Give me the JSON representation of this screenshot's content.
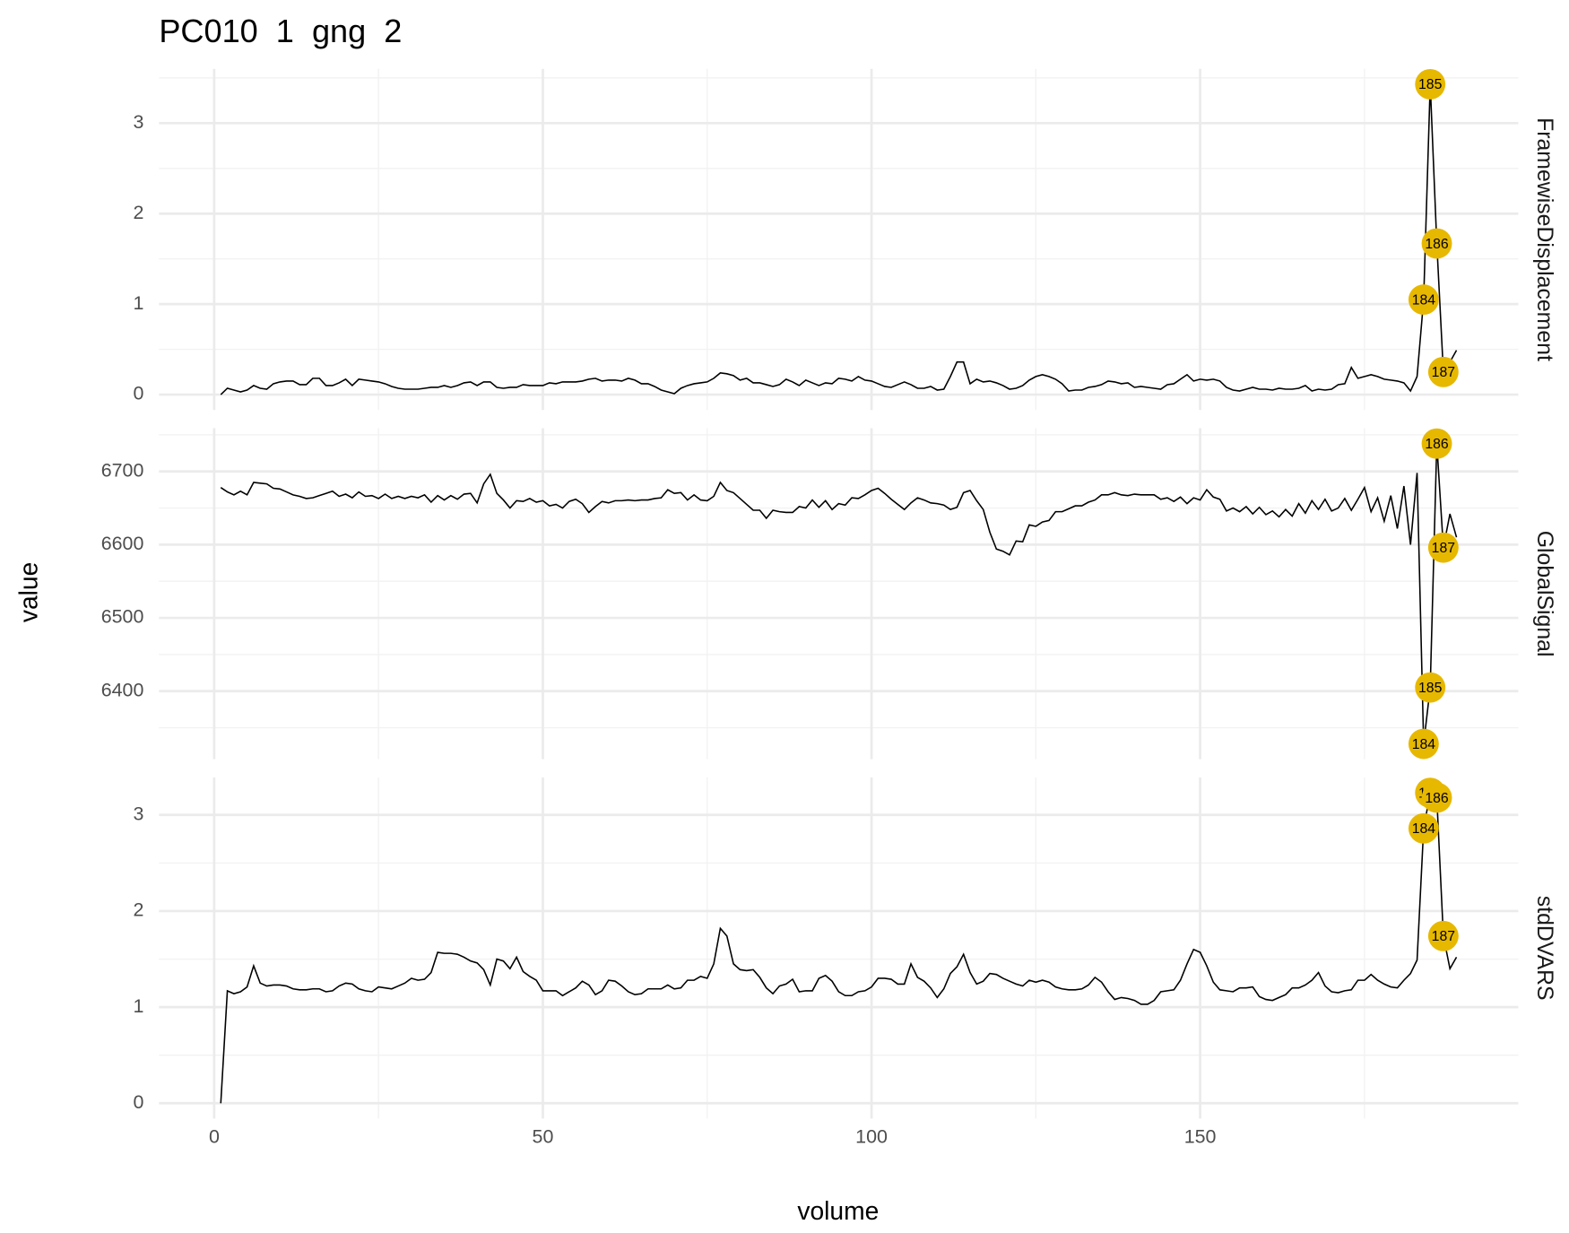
{
  "chart_data": {
    "type": "line",
    "title": "PC010  1  gng  2",
    "x_label": "volume",
    "y_label": "value",
    "x": [
      1,
      2,
      3,
      4,
      5,
      6,
      7,
      8,
      9,
      10,
      11,
      12,
      13,
      14,
      15,
      16,
      17,
      18,
      19,
      20,
      21,
      22,
      23,
      24,
      25,
      26,
      27,
      28,
      29,
      30,
      31,
      32,
      33,
      34,
      35,
      36,
      37,
      38,
      39,
      40,
      41,
      42,
      43,
      44,
      45,
      46,
      47,
      48,
      49,
      50,
      51,
      52,
      53,
      54,
      55,
      56,
      57,
      58,
      59,
      60,
      61,
      62,
      63,
      64,
      65,
      66,
      67,
      68,
      69,
      70,
      71,
      72,
      73,
      74,
      75,
      76,
      77,
      78,
      79,
      80,
      81,
      82,
      83,
      84,
      85,
      86,
      87,
      88,
      89,
      90,
      91,
      92,
      93,
      94,
      95,
      96,
      97,
      98,
      99,
      100,
      101,
      102,
      103,
      104,
      105,
      106,
      107,
      108,
      109,
      110,
      111,
      112,
      113,
      114,
      115,
      116,
      117,
      118,
      119,
      120,
      121,
      122,
      123,
      124,
      125,
      126,
      127,
      128,
      129,
      130,
      131,
      132,
      133,
      134,
      135,
      136,
      137,
      138,
      139,
      140,
      141,
      142,
      143,
      144,
      145,
      146,
      147,
      148,
      149,
      150,
      151,
      152,
      153,
      154,
      155,
      156,
      157,
      158,
      159,
      160,
      161,
      162,
      163,
      164,
      165,
      166,
      167,
      168,
      169,
      170,
      171,
      172,
      173,
      174,
      175,
      176,
      177,
      178,
      179,
      180,
      181,
      182,
      183,
      184,
      185,
      186,
      187,
      188,
      189
    ],
    "xlim": [
      -8.4,
      198.4
    ],
    "xticks": [
      0,
      50,
      100,
      150
    ],
    "xminor": [
      25,
      75,
      125,
      175
    ],
    "grid": true,
    "line_color": "#000000",
    "highlight_color": "#E7B800",
    "highlight_x": [
      184,
      185,
      186,
      187
    ],
    "panels": [
      {
        "name": "FramewiseDisplacement",
        "ylim": [
          -0.17,
          3.6
        ],
        "yticks": [
          0,
          1,
          2,
          3
        ],
        "yminor": [
          0.5,
          1.5,
          2.5,
          3.5
        ],
        "values": [
          0,
          0.07,
          0.05,
          0.03,
          0.05,
          0.1,
          0.07,
          0.06,
          0.12,
          0.14,
          0.15,
          0.15,
          0.11,
          0.11,
          0.18,
          0.18,
          0.1,
          0.1,
          0.13,
          0.17,
          0.1,
          0.17,
          0.16,
          0.15,
          0.14,
          0.12,
          0.09,
          0.07,
          0.06,
          0.06,
          0.06,
          0.07,
          0.08,
          0.08,
          0.1,
          0.08,
          0.1,
          0.13,
          0.14,
          0.1,
          0.14,
          0.14,
          0.08,
          0.07,
          0.08,
          0.08,
          0.11,
          0.1,
          0.1,
          0.1,
          0.13,
          0.12,
          0.14,
          0.14,
          0.14,
          0.15,
          0.17,
          0.18,
          0.15,
          0.16,
          0.16,
          0.15,
          0.18,
          0.16,
          0.12,
          0.12,
          0.09,
          0.05,
          0.03,
          0.01,
          0.07,
          0.1,
          0.12,
          0.13,
          0.14,
          0.18,
          0.24,
          0.23,
          0.21,
          0.16,
          0.18,
          0.13,
          0.13,
          0.11,
          0.09,
          0.11,
          0.17,
          0.14,
          0.1,
          0.16,
          0.13,
          0.1,
          0.13,
          0.12,
          0.18,
          0.17,
          0.15,
          0.2,
          0.16,
          0.15,
          0.12,
          0.09,
          0.08,
          0.11,
          0.14,
          0.11,
          0.07,
          0.07,
          0.09,
          0.05,
          0.06,
          0.2,
          0.36,
          0.36,
          0.12,
          0.17,
          0.14,
          0.15,
          0.13,
          0.1,
          0.06,
          0.07,
          0.1,
          0.16,
          0.2,
          0.22,
          0.2,
          0.17,
          0.12,
          0.04,
          0.05,
          0.05,
          0.08,
          0.09,
          0.11,
          0.15,
          0.14,
          0.12,
          0.13,
          0.08,
          0.09,
          0.08,
          0.07,
          0.06,
          0.11,
          0.12,
          0.17,
          0.22,
          0.15,
          0.17,
          0.16,
          0.17,
          0.15,
          0.08,
          0.05,
          0.04,
          0.06,
          0.08,
          0.06,
          0.06,
          0.05,
          0.07,
          0.06,
          0.06,
          0.07,
          0.1,
          0.04,
          0.06,
          0.05,
          0.06,
          0.11,
          0.12,
          0.3,
          0.18,
          0.2,
          0.22,
          0.2,
          0.17,
          0.16,
          0.15,
          0.13,
          0.04,
          0.2,
          1.05,
          3.43,
          1.67,
          0.25,
          0.36,
          0.49
        ]
      },
      {
        "name": "GlobalSignal",
        "ylim": [
          6307,
          6759
        ],
        "yticks": [
          6400,
          6500,
          6600,
          6700
        ],
        "yminor": [
          6350,
          6450,
          6550,
          6650,
          6750
        ],
        "values": [
          6678,
          6672,
          6668,
          6673,
          6668,
          6685,
          6684,
          6683,
          6677,
          6676,
          6672,
          6668,
          6666,
          6663,
          6664,
          6667,
          6670,
          6673,
          6666,
          6669,
          6664,
          6672,
          6666,
          6667,
          6663,
          6669,
          6663,
          6666,
          6663,
          6666,
          6664,
          6668,
          6658,
          6667,
          6661,
          6667,
          6662,
          6669,
          6670,
          6657,
          6683,
          6696,
          6670,
          6661,
          6650,
          6660,
          6659,
          6663,
          6658,
          6660,
          6653,
          6655,
          6650,
          6659,
          6662,
          6656,
          6644,
          6652,
          6659,
          6657,
          6660,
          6660,
          6661,
          6660,
          6661,
          6661,
          6663,
          6664,
          6675,
          6670,
          6671,
          6661,
          6668,
          6661,
          6660,
          6666,
          6685,
          6674,
          6671,
          6663,
          6655,
          6647,
          6647,
          6636,
          6647,
          6645,
          6644,
          6644,
          6652,
          6650,
          6661,
          6651,
          6660,
          6648,
          6656,
          6654,
          6664,
          6663,
          6668,
          6674,
          6677,
          6670,
          6662,
          6655,
          6648,
          6657,
          6664,
          6661,
          6657,
          6656,
          6654,
          6648,
          6651,
          6671,
          6674,
          6660,
          6648,
          6617,
          6594,
          6591,
          6586,
          6605,
          6604,
          6627,
          6625,
          6631,
          6633,
          6645,
          6645,
          6649,
          6653,
          6653,
          6658,
          6661,
          6668,
          6668,
          6671,
          6668,
          6667,
          6669,
          6668,
          6668,
          6668,
          6662,
          6664,
          6659,
          6665,
          6656,
          6664,
          6661,
          6675,
          6665,
          6662,
          6646,
          6650,
          6645,
          6652,
          6642,
          6651,
          6641,
          6646,
          6638,
          6648,
          6639,
          6656,
          6643,
          6660,
          6648,
          6662,
          6646,
          6650,
          6663,
          6647,
          6662,
          6678,
          6645,
          6664,
          6632,
          6667,
          6622,
          6680,
          6600,
          6698,
          6328,
          6405,
          6738,
          6596,
          6642,
          6610
        ]
      },
      {
        "name": "stdDVARS",
        "ylim": [
          -0.16,
          3.39
        ],
        "yticks": [
          0,
          1,
          2,
          3
        ],
        "yminor": [
          0.5,
          1.5,
          2.5
        ],
        "values": [
          0,
          1.17,
          1.14,
          1.16,
          1.21,
          1.43,
          1.25,
          1.22,
          1.23,
          1.23,
          1.22,
          1.19,
          1.18,
          1.18,
          1.19,
          1.19,
          1.16,
          1.17,
          1.22,
          1.25,
          1.24,
          1.19,
          1.17,
          1.16,
          1.21,
          1.2,
          1.19,
          1.22,
          1.25,
          1.3,
          1.28,
          1.29,
          1.36,
          1.57,
          1.56,
          1.56,
          1.55,
          1.52,
          1.48,
          1.46,
          1.39,
          1.23,
          1.5,
          1.48,
          1.4,
          1.52,
          1.37,
          1.32,
          1.28,
          1.17,
          1.17,
          1.17,
          1.12,
          1.16,
          1.2,
          1.27,
          1.23,
          1.13,
          1.17,
          1.28,
          1.27,
          1.22,
          1.16,
          1.13,
          1.14,
          1.19,
          1.19,
          1.19,
          1.23,
          1.19,
          1.2,
          1.28,
          1.28,
          1.32,
          1.3,
          1.45,
          1.82,
          1.74,
          1.45,
          1.39,
          1.38,
          1.39,
          1.31,
          1.2,
          1.14,
          1.22,
          1.24,
          1.29,
          1.16,
          1.17,
          1.17,
          1.3,
          1.33,
          1.27,
          1.16,
          1.12,
          1.12,
          1.16,
          1.17,
          1.21,
          1.3,
          1.3,
          1.29,
          1.24,
          1.24,
          1.45,
          1.31,
          1.27,
          1.2,
          1.1,
          1.19,
          1.35,
          1.42,
          1.55,
          1.36,
          1.24,
          1.27,
          1.35,
          1.34,
          1.3,
          1.27,
          1.24,
          1.22,
          1.28,
          1.26,
          1.28,
          1.26,
          1.21,
          1.19,
          1.18,
          1.18,
          1.19,
          1.23,
          1.31,
          1.26,
          1.16,
          1.08,
          1.1,
          1.09,
          1.07,
          1.03,
          1.03,
          1.07,
          1.16,
          1.17,
          1.18,
          1.28,
          1.45,
          1.6,
          1.57,
          1.43,
          1.26,
          1.18,
          1.17,
          1.16,
          1.2,
          1.2,
          1.21,
          1.11,
          1.08,
          1.07,
          1.1,
          1.13,
          1.2,
          1.2,
          1.23,
          1.28,
          1.36,
          1.22,
          1.16,
          1.15,
          1.17,
          1.18,
          1.28,
          1.28,
          1.34,
          1.28,
          1.24,
          1.21,
          1.2,
          1.28,
          1.35,
          1.49,
          2.86,
          3.23,
          3.18,
          1.74,
          1.4,
          1.52
        ]
      }
    ]
  }
}
